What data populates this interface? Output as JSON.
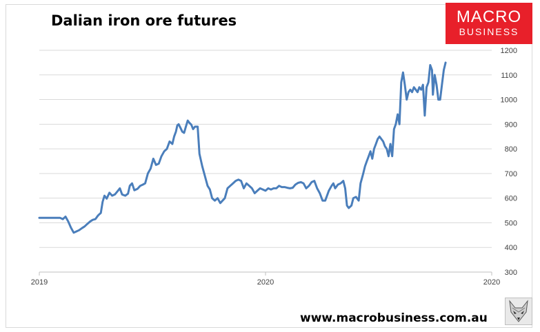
{
  "title": "Dalian iron ore futures",
  "logo": {
    "line1": "MACRO",
    "line2": "BUSINESS"
  },
  "footer_url": "www.macrobusiness.com.au",
  "fox_icon": "fox-head-icon",
  "colors": {
    "line": "#4a7ebb",
    "grid": "#d9d9d9",
    "logo_bg": "#e8202a"
  },
  "chart_data": {
    "type": "line",
    "title": "Dalian iron ore futures",
    "xlabel": "",
    "ylabel": "",
    "x_tick_labels": [
      "2019",
      "2020",
      "2020"
    ],
    "x_tick_positions": [
      0,
      0.5,
      1
    ],
    "ylim": [
      300,
      1200
    ],
    "y_ticks": [
      300,
      400,
      500,
      600,
      700,
      800,
      900,
      1000,
      1100,
      1200
    ],
    "y_axis_side": "right",
    "grid": "horizontal",
    "legend": "none",
    "series": [
      {
        "name": "",
        "values": [
          [
            0.0,
            520
          ],
          [
            0.046,
            520
          ],
          [
            0.052,
            515
          ],
          [
            0.058,
            525
          ],
          [
            0.064,
            505
          ],
          [
            0.07,
            480
          ],
          [
            0.076,
            460
          ],
          [
            0.082,
            465
          ],
          [
            0.088,
            470
          ],
          [
            0.094,
            478
          ],
          [
            0.1,
            485
          ],
          [
            0.106,
            495
          ],
          [
            0.112,
            505
          ],
          [
            0.118,
            512
          ],
          [
            0.124,
            515
          ],
          [
            0.13,
            530
          ],
          [
            0.136,
            540
          ],
          [
            0.14,
            585
          ],
          [
            0.144,
            610
          ],
          [
            0.149,
            598
          ],
          [
            0.155,
            622
          ],
          [
            0.161,
            610
          ],
          [
            0.167,
            615
          ],
          [
            0.173,
            628
          ],
          [
            0.178,
            640
          ],
          [
            0.183,
            615
          ],
          [
            0.19,
            610
          ],
          [
            0.196,
            618
          ],
          [
            0.2,
            650
          ],
          [
            0.205,
            660
          ],
          [
            0.21,
            632
          ],
          [
            0.217,
            638
          ],
          [
            0.223,
            650
          ],
          [
            0.229,
            655
          ],
          [
            0.234,
            660
          ],
          [
            0.24,
            700
          ],
          [
            0.246,
            720
          ],
          [
            0.252,
            760
          ],
          [
            0.258,
            735
          ],
          [
            0.264,
            740
          ],
          [
            0.27,
            770
          ],
          [
            0.276,
            790
          ],
          [
            0.282,
            800
          ],
          [
            0.288,
            830
          ],
          [
            0.294,
            820
          ],
          [
            0.298,
            850
          ],
          [
            0.302,
            870
          ],
          [
            0.305,
            895
          ],
          [
            0.308,
            900
          ],
          [
            0.312,
            885
          ],
          [
            0.316,
            870
          ],
          [
            0.32,
            865
          ],
          [
            0.324,
            890
          ],
          [
            0.328,
            915
          ],
          [
            0.332,
            905
          ],
          [
            0.336,
            898
          ],
          [
            0.34,
            880
          ],
          [
            0.344,
            890
          ],
          [
            0.35,
            890
          ],
          [
            0.354,
            780
          ],
          [
            0.36,
            730
          ],
          [
            0.366,
            690
          ],
          [
            0.372,
            650
          ],
          [
            0.377,
            635
          ],
          [
            0.382,
            600
          ],
          [
            0.388,
            590
          ],
          [
            0.394,
            600
          ],
          [
            0.4,
            580
          ],
          [
            0.41,
            600
          ],
          [
            0.416,
            640
          ],
          [
            0.422,
            650
          ],
          [
            0.428,
            660
          ],
          [
            0.434,
            670
          ],
          [
            0.44,
            675
          ],
          [
            0.446,
            670
          ],
          [
            0.452,
            640
          ],
          [
            0.458,
            660
          ],
          [
            0.464,
            650
          ],
          [
            0.47,
            640
          ],
          [
            0.476,
            620
          ],
          [
            0.482,
            630
          ],
          [
            0.488,
            640
          ],
          [
            0.494,
            635
          ],
          [
            0.5,
            630
          ],
          [
            0.506,
            640
          ],
          [
            0.512,
            635
          ],
          [
            0.518,
            640
          ],
          [
            0.524,
            640
          ],
          [
            0.53,
            650
          ],
          [
            0.536,
            645
          ],
          [
            0.542,
            645
          ],
          [
            0.548,
            642
          ],
          [
            0.554,
            640
          ],
          [
            0.56,
            642
          ],
          [
            0.566,
            655
          ],
          [
            0.572,
            662
          ],
          [
            0.578,
            665
          ],
          [
            0.584,
            660
          ],
          [
            0.59,
            640
          ],
          [
            0.596,
            650
          ],
          [
            0.602,
            665
          ],
          [
            0.608,
            670
          ],
          [
            0.614,
            640
          ],
          [
            0.62,
            620
          ],
          [
            0.626,
            590
          ],
          [
            0.632,
            590
          ],
          [
            0.64,
            630
          ],
          [
            0.646,
            650
          ],
          [
            0.65,
            660
          ],
          [
            0.654,
            640
          ],
          [
            0.66,
            655
          ],
          [
            0.666,
            660
          ],
          [
            0.672,
            670
          ],
          [
            0.676,
            640
          ],
          [
            0.68,
            570
          ],
          [
            0.684,
            560
          ],
          [
            0.69,
            570
          ],
          [
            0.694,
            600
          ],
          [
            0.7,
            605
          ],
          [
            0.706,
            590
          ],
          [
            0.71,
            660
          ],
          [
            0.716,
            700
          ],
          [
            0.72,
            730
          ],
          [
            0.724,
            750
          ],
          [
            0.728,
            770
          ],
          [
            0.732,
            790
          ],
          [
            0.736,
            760
          ],
          [
            0.74,
            800
          ],
          [
            0.744,
            820
          ],
          [
            0.748,
            840
          ],
          [
            0.752,
            850
          ],
          [
            0.756,
            840
          ],
          [
            0.76,
            830
          ],
          [
            0.764,
            810
          ],
          [
            0.768,
            800
          ],
          [
            0.772,
            770
          ],
          [
            0.776,
            820
          ],
          [
            0.78,
            770
          ],
          [
            0.784,
            880
          ],
          [
            0.788,
            900
          ],
          [
            0.792,
            940
          ],
          [
            0.796,
            900
          ],
          [
            0.8,
            1070
          ],
          [
            0.804,
            1110
          ],
          [
            0.808,
            1060
          ],
          [
            0.812,
            1000
          ],
          [
            0.816,
            1030
          ],
          [
            0.82,
            1040
          ],
          [
            0.824,
            1030
          ],
          [
            0.828,
            1050
          ],
          [
            0.832,
            1040
          ],
          [
            0.836,
            1030
          ],
          [
            0.84,
            1050
          ],
          [
            0.844,
            1040
          ],
          [
            0.848,
            1060
          ],
          [
            0.852,
            935
          ],
          [
            0.856,
            1050
          ],
          [
            0.86,
            1070
          ],
          [
            0.864,
            1140
          ],
          [
            0.868,
            1120
          ],
          [
            0.87,
            1020
          ],
          [
            0.874,
            1100
          ],
          [
            0.878,
            1060
          ],
          [
            0.882,
            1000
          ],
          [
            0.886,
            1000
          ],
          [
            0.89,
            1060
          ],
          [
            0.894,
            1120
          ],
          [
            0.898,
            1150
          ]
        ]
      }
    ]
  }
}
